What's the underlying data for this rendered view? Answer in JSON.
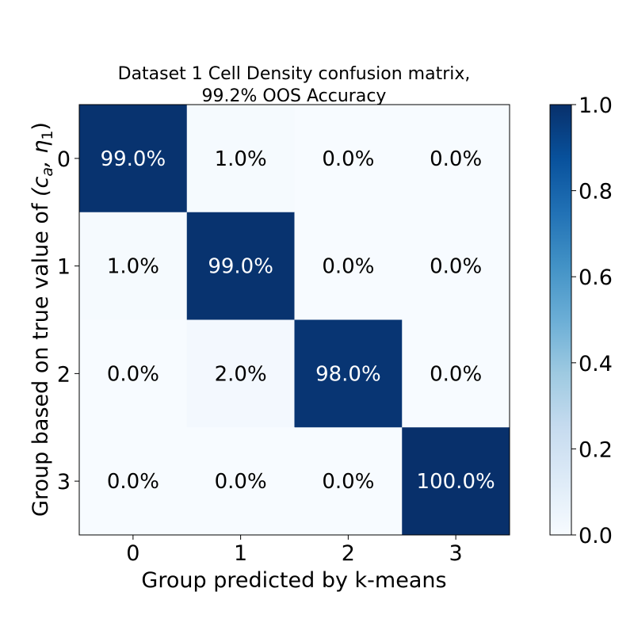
{
  "chart_data": {
    "type": "heatmap",
    "title_line1": "Dataset 1 Cell Density confusion matrix,",
    "title_line2": "99.2% OOS Accuracy",
    "xlabel": "Group predicted by k-means",
    "ylabel_prefix": "Group based on true value of ",
    "ylabel_math": "(c",
    "ylabel_sub_a": "a",
    "ylabel_comma": ", η",
    "ylabel_sub_1": "1",
    "ylabel_close": ")",
    "x_categories": [
      "0",
      "1",
      "2",
      "3"
    ],
    "y_categories": [
      "0",
      "1",
      "2",
      "3"
    ],
    "values": [
      [
        0.99,
        0.01,
        0.0,
        0.0
      ],
      [
        0.01,
        0.99,
        0.0,
        0.0
      ],
      [
        0.0,
        0.02,
        0.98,
        0.0
      ],
      [
        0.0,
        0.0,
        0.0,
        1.0
      ]
    ],
    "cell_labels": [
      [
        "99.0%",
        "1.0%",
        "0.0%",
        "0.0%"
      ],
      [
        "1.0%",
        "99.0%",
        "0.0%",
        "0.0%"
      ],
      [
        "0.0%",
        "2.0%",
        "98.0%",
        "0.0%"
      ],
      [
        "0.0%",
        "0.0%",
        "0.0%",
        "100.0%"
      ]
    ],
    "colormap": "Blues",
    "colorbar": {
      "range": [
        0.0,
        1.0
      ],
      "ticks": [
        "0.0",
        "0.2",
        "0.4",
        "0.6",
        "0.8",
        "1.0"
      ]
    },
    "colors": {
      "low": "#f7fbff",
      "high": "#08306b"
    }
  }
}
